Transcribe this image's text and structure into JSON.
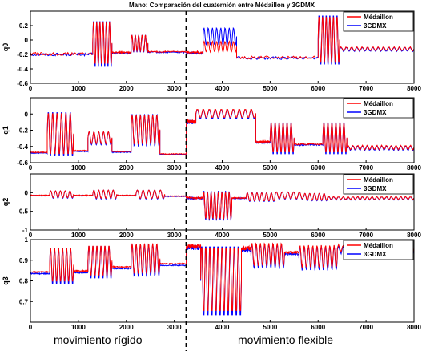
{
  "title": "Mano: Comparación del cuaternión entre Médaillon y 3GDMX",
  "bottom_labels": {
    "left": "movimiento rígido",
    "right": "movimiento flexible"
  },
  "colors": {
    "medaillon": "#ff0000",
    "gdmx": "#0000ff",
    "divider": "#000000"
  },
  "divider_x": 3250,
  "chart_data": [
    {
      "type": "line",
      "ylabel": "q0",
      "xlim": [
        0,
        8000
      ],
      "ylim": [
        -0.6,
        0.4
      ],
      "yticks": [
        -0.6,
        -0.4,
        -0.2,
        0,
        0.2
      ],
      "xticks": [
        0,
        1000,
        2000,
        3000,
        4000,
        5000,
        6000,
        7000,
        8000
      ],
      "legend": [
        "Médaillon",
        "3GDMX"
      ],
      "legend_position": "top-right",
      "segments": [
        {
          "x": [
            0,
            1300
          ],
          "base": -0.2,
          "amp": 0.04
        },
        {
          "x": [
            1300,
            1700
          ],
          "base": -0.05,
          "amp": 0.32,
          "osc": 6
        },
        {
          "x": [
            1700,
            2100
          ],
          "base": -0.18,
          "amp": 0.02
        },
        {
          "x": [
            2100,
            2450
          ],
          "base": -0.05,
          "amp": 0.12,
          "osc": 5
        },
        {
          "x": [
            2450,
            3250
          ],
          "base": -0.17,
          "amp": 0.02
        },
        {
          "x": [
            3250,
            3600
          ],
          "base": -0.18,
          "amp": 0.03
        },
        {
          "x": [
            3600,
            4300
          ],
          "base": 0.05,
          "amp": 0.12,
          "osc": 8,
          "red_base": -0.1,
          "red_amp": 0.08
        },
        {
          "x": [
            4300,
            6000
          ],
          "base": -0.25,
          "amp": 0.04
        },
        {
          "x": [
            6000,
            6450
          ],
          "base": 0.0,
          "amp": 0.35,
          "osc": 6
        },
        {
          "x": [
            6450,
            8000
          ],
          "base": -0.13,
          "amp": 0.03,
          "osc": 14
        }
      ]
    },
    {
      "type": "line",
      "ylabel": "q1",
      "xlim": [
        0,
        8000
      ],
      "ylim": [
        -0.6,
        0.2
      ],
      "yticks": [
        -0.6,
        -0.4,
        -0.2,
        0
      ],
      "xticks": [
        0,
        1000,
        2000,
        3000,
        4000,
        5000,
        6000,
        7000,
        8000
      ],
      "legend": [
        "Médaillon",
        "3GDMX"
      ],
      "legend_position": "top-right",
      "segments": [
        {
          "x": [
            0,
            350
          ],
          "base": -0.48,
          "amp": 0.01
        },
        {
          "x": [
            350,
            900
          ],
          "base": -0.25,
          "amp": 0.28,
          "osc": 6
        },
        {
          "x": [
            900,
            1200
          ],
          "base": -0.46,
          "amp": 0.01
        },
        {
          "x": [
            1200,
            1700
          ],
          "base": -0.3,
          "amp": 0.08,
          "osc": 5
        },
        {
          "x": [
            1700,
            2100
          ],
          "base": -0.47,
          "amp": 0.01
        },
        {
          "x": [
            2100,
            2700
          ],
          "base": -0.2,
          "amp": 0.2,
          "osc": 7
        },
        {
          "x": [
            2700,
            3250
          ],
          "base": -0.5,
          "amp": 0.01
        },
        {
          "x": [
            3250,
            3450
          ],
          "base": -0.1,
          "amp": 0.05
        },
        {
          "x": [
            3450,
            4700
          ],
          "base": 0.0,
          "amp": 0.06,
          "osc": 10
        },
        {
          "x": [
            4700,
            5000
          ],
          "base": -0.35,
          "amp": 0.02
        },
        {
          "x": [
            5000,
            5500
          ],
          "base": -0.3,
          "amp": 0.2,
          "osc": 6
        },
        {
          "x": [
            5500,
            6100
          ],
          "base": -0.38,
          "amp": 0.02
        },
        {
          "x": [
            6100,
            6600
          ],
          "base": -0.3,
          "amp": 0.2,
          "osc": 6
        },
        {
          "x": [
            6600,
            8000
          ],
          "base": -0.42,
          "amp": 0.03,
          "osc": 14
        }
      ]
    },
    {
      "type": "line",
      "ylabel": "q2",
      "xlim": [
        0,
        8000
      ],
      "ylim": [
        -1,
        0.5
      ],
      "yticks": [
        -1,
        -0.5,
        0
      ],
      "xticks": [
        0,
        1000,
        2000,
        3000,
        4000,
        5000,
        6000,
        7000,
        8000
      ],
      "legend": [
        "Médaillon",
        "3GDMX"
      ],
      "legend_position": "top-right",
      "segments": [
        {
          "x": [
            0,
            400
          ],
          "base": -0.08,
          "amp": 0.02
        },
        {
          "x": [
            400,
            900
          ],
          "base": -0.05,
          "amp": 0.1,
          "osc": 5
        },
        {
          "x": [
            900,
            1300
          ],
          "base": -0.08,
          "amp": 0.02
        },
        {
          "x": [
            1300,
            1800
          ],
          "base": -0.05,
          "amp": 0.12,
          "osc": 5
        },
        {
          "x": [
            1800,
            2200
          ],
          "base": -0.08,
          "amp": 0.02
        },
        {
          "x": [
            2200,
            2800
          ],
          "base": -0.05,
          "amp": 0.12,
          "osc": 5
        },
        {
          "x": [
            2800,
            3250
          ],
          "base": -0.1,
          "amp": 0.02
        },
        {
          "x": [
            3250,
            3600
          ],
          "base": -0.15,
          "amp": 0.05
        },
        {
          "x": [
            3600,
            4200
          ],
          "base": -0.35,
          "amp": 0.4,
          "osc": 8
        },
        {
          "x": [
            4200,
            4500
          ],
          "base": -0.15,
          "amp": 0.03
        },
        {
          "x": [
            4500,
            5100
          ],
          "base": -0.12,
          "amp": 0.12,
          "osc": 6
        },
        {
          "x": [
            5100,
            5700
          ],
          "base": -0.08,
          "amp": 0.1,
          "osc": 5
        },
        {
          "x": [
            5700,
            6200
          ],
          "base": -0.12,
          "amp": 0.1,
          "osc": 5
        },
        {
          "x": [
            6200,
            8000
          ],
          "base": -0.15,
          "amp": 0.05,
          "osc": 18
        }
      ]
    },
    {
      "type": "line",
      "ylabel": "q3",
      "xlim": [
        0,
        8000
      ],
      "ylim": [
        0.6,
        1.0
      ],
      "yticks": [
        0.7,
        0.8,
        0.9,
        1
      ],
      "xticks": [
        0,
        1000,
        2000,
        3000,
        4000,
        5000,
        6000,
        7000,
        8000
      ],
      "legend": [
        "Médaillon",
        "3GDMX"
      ],
      "legend_position": "top-right",
      "segments": [
        {
          "x": [
            0,
            400
          ],
          "base": 0.835,
          "amp": 0.005
        },
        {
          "x": [
            400,
            900
          ],
          "base": 0.87,
          "amp": 0.09,
          "osc": 6
        },
        {
          "x": [
            900,
            1200
          ],
          "base": 0.84,
          "amp": 0.005
        },
        {
          "x": [
            1200,
            1700
          ],
          "base": 0.89,
          "amp": 0.08,
          "osc": 6
        },
        {
          "x": [
            1700,
            2100
          ],
          "base": 0.86,
          "amp": 0.005
        },
        {
          "x": [
            2100,
            2700
          ],
          "base": 0.9,
          "amp": 0.08,
          "osc": 7
        },
        {
          "x": [
            2700,
            3250
          ],
          "base": 0.875,
          "amp": 0.005
        },
        {
          "x": [
            3250,
            3550
          ],
          "base": 0.96,
          "amp": 0.02
        },
        {
          "x": [
            3550,
            4400
          ],
          "base": 0.8,
          "amp": 0.19,
          "osc": 10
        },
        {
          "x": [
            4400,
            4600
          ],
          "base": 0.95,
          "amp": 0.02
        },
        {
          "x": [
            4600,
            5300
          ],
          "base": 0.92,
          "amp": 0.06,
          "osc": 8
        },
        {
          "x": [
            5300,
            5600
          ],
          "base": 0.93,
          "amp": 0.01
        },
        {
          "x": [
            5600,
            6400
          ],
          "base": 0.91,
          "amp": 0.06,
          "osc": 9
        },
        {
          "x": [
            6400,
            8000
          ],
          "base": 0.95,
          "amp": 0.02,
          "osc": 16
        }
      ]
    }
  ]
}
